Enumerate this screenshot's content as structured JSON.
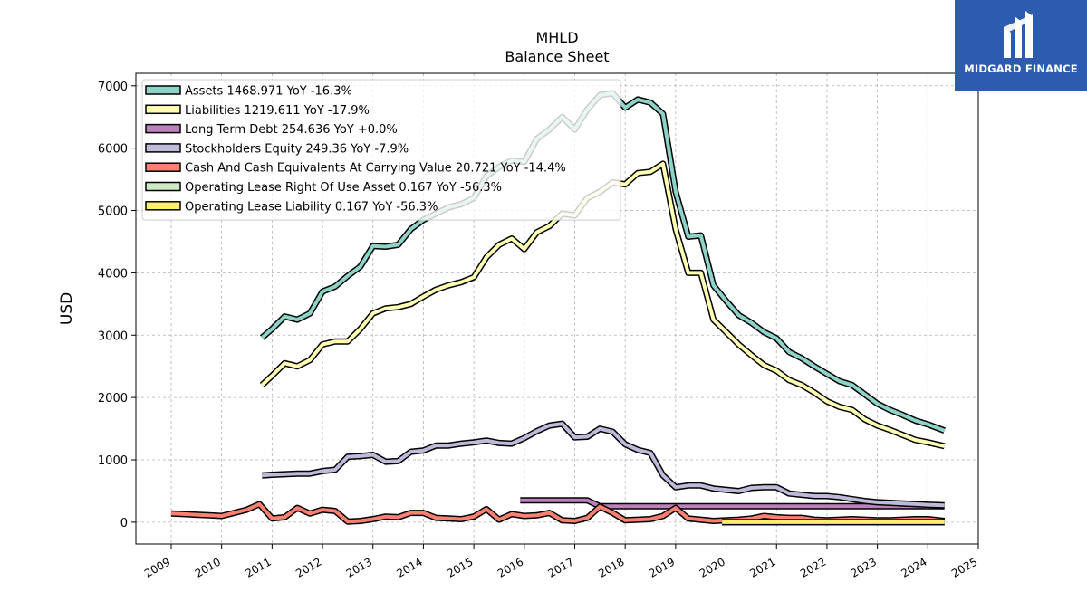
{
  "brand": {
    "name": "MIDGARD FINANCE",
    "color": "#2c5bb0",
    "icon": "midgard-logo-icon"
  },
  "chart_data": {
    "type": "line",
    "title": "MHLD",
    "subtitle": "Balance  Sheet",
    "xlabel": "",
    "ylabel": "USD",
    "xlim": [
      2008.3,
      2025.0
    ],
    "ylim": [
      -350,
      7200
    ],
    "x_ticks": [
      "2009",
      "2010",
      "2011",
      "2012",
      "2013",
      "2014",
      "2015",
      "2016",
      "2017",
      "2018",
      "2019",
      "2020",
      "2021",
      "2022",
      "2023",
      "2024",
      "2025"
    ],
    "y_ticks": [
      0,
      1000,
      2000,
      3000,
      4000,
      5000,
      6000,
      7000
    ],
    "grid": true,
    "legend_position": "top-left",
    "series": [
      {
        "name": "Assets  1468.971 YoY -16.3%",
        "color": "#8dd3c7",
        "x": [
          2010.8,
          2011.0,
          2011.25,
          2011.5,
          2011.75,
          2012.0,
          2012.25,
          2012.5,
          2012.75,
          2013.0,
          2013.25,
          2013.5,
          2013.75,
          2014.0,
          2014.25,
          2014.5,
          2014.75,
          2015.0,
          2015.25,
          2015.5,
          2015.75,
          2016.0,
          2016.25,
          2016.5,
          2016.75,
          2017.0,
          2017.25,
          2017.5,
          2017.75,
          2018.0,
          2018.25,
          2018.5,
          2018.75,
          2019.0,
          2019.25,
          2019.5,
          2019.75,
          2020.0,
          2020.25,
          2020.5,
          2020.75,
          2021.0,
          2021.25,
          2021.5,
          2021.75,
          2022.0,
          2022.25,
          2022.5,
          2022.75,
          2023.0,
          2023.25,
          2023.5,
          2023.75,
          2024.0,
          2024.33
        ],
        "values": [
          2960,
          3100,
          3300,
          3250,
          3350,
          3700,
          3780,
          3950,
          4100,
          4430,
          4420,
          4450,
          4700,
          4850,
          4950,
          5050,
          5100,
          5200,
          5550,
          5700,
          5800,
          5780,
          6150,
          6300,
          6500,
          6300,
          6620,
          6850,
          6880,
          6650,
          6780,
          6730,
          6550,
          5300,
          4580,
          4600,
          3800,
          3550,
          3320,
          3200,
          3050,
          2950,
          2730,
          2630,
          2500,
          2380,
          2260,
          2200,
          2050,
          1900,
          1800,
          1720,
          1630,
          1570,
          1469
        ]
      },
      {
        "name": "Liabilities  1219.611 YoY -17.9%",
        "color": "#ffffb3",
        "x": [
          2010.8,
          2011.0,
          2011.25,
          2011.5,
          2011.75,
          2012.0,
          2012.25,
          2012.5,
          2012.75,
          2013.0,
          2013.25,
          2013.5,
          2013.75,
          2014.0,
          2014.25,
          2014.5,
          2014.75,
          2015.0,
          2015.25,
          2015.5,
          2015.75,
          2016.0,
          2016.25,
          2016.5,
          2016.75,
          2017.0,
          2017.25,
          2017.5,
          2017.75,
          2018.0,
          2018.25,
          2018.5,
          2018.75,
          2019.0,
          2019.25,
          2019.5,
          2019.75,
          2020.0,
          2020.25,
          2020.5,
          2020.75,
          2021.0,
          2021.25,
          2021.5,
          2021.75,
          2022.0,
          2022.25,
          2022.5,
          2022.75,
          2023.0,
          2023.25,
          2023.5,
          2023.75,
          2024.0,
          2024.33
        ],
        "values": [
          2200,
          2350,
          2550,
          2500,
          2600,
          2850,
          2900,
          2900,
          3100,
          3350,
          3430,
          3450,
          3500,
          3620,
          3730,
          3800,
          3850,
          3930,
          4250,
          4450,
          4550,
          4380,
          4650,
          4750,
          4950,
          4920,
          5200,
          5300,
          5450,
          5420,
          5600,
          5620,
          5750,
          4700,
          4000,
          4000,
          3250,
          3050,
          2850,
          2680,
          2520,
          2430,
          2280,
          2200,
          2080,
          1940,
          1850,
          1800,
          1650,
          1550,
          1480,
          1400,
          1320,
          1280,
          1220
        ]
      },
      {
        "name": "Long Term Debt  254.636 YoY +0.0%",
        "color": "#bc80bd",
        "x": [
          2015.92,
          2016.25,
          2016.5,
          2016.75,
          2017.0,
          2017.25,
          2017.5,
          2018.0,
          2018.5,
          2019.0,
          2019.5,
          2020.0,
          2020.5,
          2021.0,
          2021.5,
          2022.0,
          2022.5,
          2023.0,
          2023.5,
          2024.0,
          2024.33
        ],
        "values": [
          350,
          350,
          350,
          350,
          350,
          350,
          255,
          255,
          255,
          255,
          255,
          255,
          255,
          255,
          255,
          255,
          255,
          255,
          255,
          255,
          255
        ]
      },
      {
        "name": "Stockholders Equity  249.36 YoY -7.9%",
        "color": "#bebada",
        "x": [
          2010.8,
          2011.0,
          2011.25,
          2011.5,
          2011.75,
          2012.0,
          2012.25,
          2012.5,
          2012.75,
          2013.0,
          2013.25,
          2013.5,
          2013.75,
          2014.0,
          2014.25,
          2014.5,
          2014.75,
          2015.0,
          2015.25,
          2015.5,
          2015.75,
          2016.0,
          2016.25,
          2016.5,
          2016.75,
          2017.0,
          2017.25,
          2017.5,
          2017.75,
          2018.0,
          2018.25,
          2018.5,
          2018.75,
          2019.0,
          2019.25,
          2019.5,
          2019.75,
          2020.0,
          2020.25,
          2020.5,
          2020.75,
          2021.0,
          2021.25,
          2021.5,
          2021.75,
          2022.0,
          2022.25,
          2022.5,
          2022.75,
          2023.0,
          2023.25,
          2023.5,
          2023.75,
          2024.0,
          2024.33
        ],
        "values": [
          750,
          760,
          770,
          780,
          780,
          820,
          840,
          1050,
          1060,
          1080,
          970,
          980,
          1130,
          1150,
          1230,
          1230,
          1260,
          1280,
          1310,
          1270,
          1260,
          1350,
          1460,
          1550,
          1580,
          1360,
          1370,
          1500,
          1450,
          1250,
          1160,
          1110,
          750,
          560,
          590,
          590,
          540,
          520,
          500,
          550,
          560,
          560,
          460,
          440,
          420,
          420,
          400,
          370,
          340,
          320,
          310,
          300,
          290,
          280,
          270
        ]
      },
      {
        "name": "Cash And Cash Equivalents At Carrying Value  20.721 YoY -14.4%",
        "color": "#fb8072",
        "x": [
          2009.0,
          2009.25,
          2009.5,
          2009.75,
          2010.0,
          2010.25,
          2010.5,
          2010.75,
          2011.0,
          2011.25,
          2011.5,
          2011.75,
          2012.0,
          2012.25,
          2012.5,
          2012.75,
          2013.0,
          2013.25,
          2013.5,
          2013.75,
          2014.0,
          2014.25,
          2014.5,
          2014.75,
          2015.0,
          2015.25,
          2015.5,
          2015.75,
          2016.0,
          2016.25,
          2016.5,
          2016.75,
          2017.0,
          2017.25,
          2017.5,
          2017.75,
          2018.0,
          2018.25,
          2018.5,
          2018.75,
          2019.0,
          2019.25,
          2019.5,
          2019.75,
          2020.0,
          2020.25,
          2020.5,
          2020.75,
          2021.0,
          2021.25,
          2021.5,
          2021.75,
          2022.0,
          2022.25,
          2022.5,
          2022.75,
          2023.0,
          2023.25,
          2023.5,
          2023.75,
          2024.0,
          2024.33
        ],
        "values": [
          140,
          130,
          120,
          110,
          100,
          150,
          200,
          290,
          60,
          80,
          230,
          140,
          200,
          180,
          10,
          20,
          50,
          90,
          80,
          150,
          150,
          70,
          60,
          50,
          90,
          210,
          40,
          130,
          100,
          110,
          150,
          30,
          20,
          70,
          250,
          150,
          30,
          40,
          50,
          100,
          230,
          60,
          40,
          20,
          30,
          40,
          60,
          100,
          80,
          70,
          70,
          40,
          30,
          40,
          50,
          40,
          30,
          30,
          40,
          50,
          50,
          20
        ]
      },
      {
        "name": "Operating Lease Right Of Use Asset  0.167 YoY -56.3%",
        "color": "#ccebc5",
        "x": [
          2019.92,
          2020.5,
          2021.0,
          2021.5,
          2022.0,
          2022.5,
          2023.0,
          2023.5,
          2024.0,
          2024.33
        ],
        "values": [
          0.5,
          0.45,
          0.4,
          0.36,
          0.33,
          0.3,
          0.27,
          0.24,
          0.2,
          0.167
        ]
      },
      {
        "name": "Operating Lease Liability  0.167 YoY -56.3%",
        "color": "#ffed6f",
        "x": [
          2019.92,
          2020.5,
          2021.0,
          2021.5,
          2022.0,
          2022.5,
          2023.0,
          2023.5,
          2024.0,
          2024.33
        ],
        "values": [
          0.5,
          0.45,
          0.4,
          0.36,
          0.33,
          0.3,
          0.27,
          0.24,
          0.2,
          0.167
        ]
      }
    ]
  }
}
